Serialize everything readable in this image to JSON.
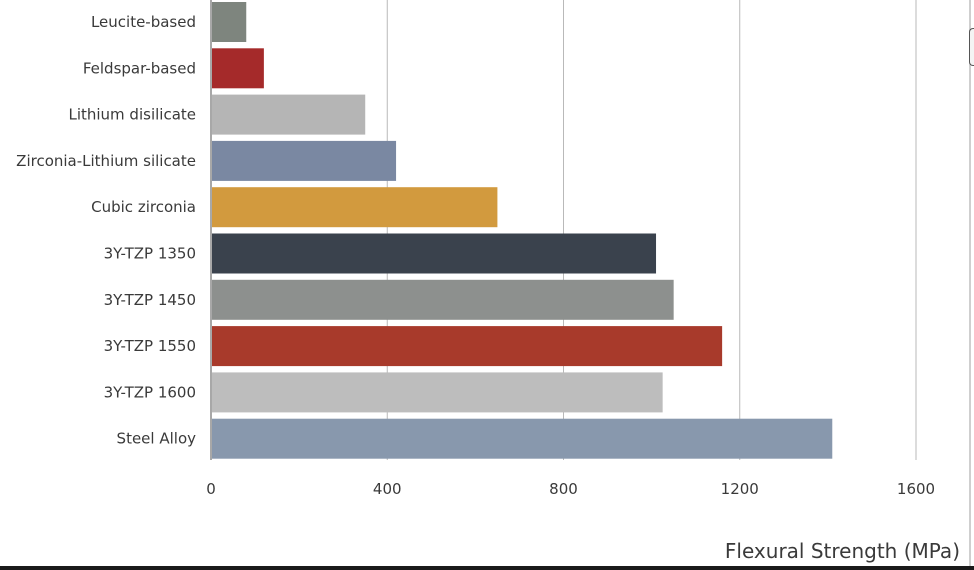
{
  "chart_data": {
    "type": "bar",
    "orientation": "horizontal",
    "categories": [
      "Leucite-based",
      "Feldspar-based",
      "Lithium disilicate",
      "Zirconia-Lithium silicate",
      "Cubic zirconia",
      "3Y-TZP 1350",
      "3Y-TZP 1450",
      "3Y-TZP 1550",
      "3Y-TZP 1600",
      "Steel Alloy"
    ],
    "values": [
      80,
      120,
      350,
      420,
      650,
      1010,
      1050,
      1160,
      1025,
      1410
    ],
    "colors": [
      "#7e857e",
      "#a52a2a",
      "#b5b5b5",
      "#7a88a2",
      "#d29a3e",
      "#3a424d",
      "#8d908e",
      "#a83a2b",
      "#bdbdbd",
      "#8898ad"
    ],
    "xlim": [
      0,
      1600
    ],
    "xticks": [
      "0",
      "400",
      "800",
      "1200",
      "1600"
    ],
    "xlabel": "Flexural Strength (MPa)",
    "ylabel": "",
    "title": "",
    "grid": "vertical"
  }
}
